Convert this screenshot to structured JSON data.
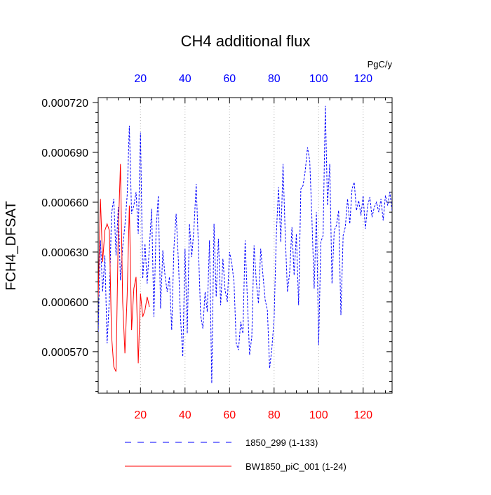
{
  "chart_data": {
    "type": "line",
    "title": "CH4 additional flux",
    "ylabel": "FCH4_DFSAT",
    "top_axis_units": "PgC/y",
    "xlim": [
      1,
      133
    ],
    "ylim": [
      0.000545,
      0.000723
    ],
    "x_ticks": [
      20,
      40,
      60,
      80,
      100,
      120
    ],
    "x_tick_labels": [
      "20",
      "40",
      "60",
      "80",
      "100",
      "120"
    ],
    "y_ticks": [
      0.00057,
      0.0006,
      0.00063,
      0.00066,
      0.00069,
      0.00072
    ],
    "y_tick_labels": [
      "0.000570",
      "0.000600",
      "0.000630",
      "0.000660",
      "0.000690",
      "0.000720"
    ],
    "grid": "vertical dotted at major x ticks",
    "legend_placement": "below",
    "series": [
      {
        "name": "1850_299 (1-133)",
        "color": "#0000ff",
        "style": "dashed",
        "x": [
          1,
          2,
          3,
          4,
          5,
          6,
          7,
          8,
          9,
          10,
          11,
          12,
          13,
          14,
          15,
          16,
          17,
          18,
          19,
          20,
          21,
          22,
          23,
          24,
          25,
          26,
          27,
          28,
          29,
          30,
          31,
          32,
          33,
          34,
          35,
          36,
          37,
          38,
          39,
          40,
          41,
          42,
          43,
          44,
          45,
          46,
          47,
          48,
          49,
          50,
          51,
          52,
          53,
          54,
          55,
          56,
          57,
          58,
          59,
          60,
          61,
          62,
          63,
          64,
          65,
          66,
          67,
          68,
          69,
          70,
          71,
          72,
          73,
          74,
          75,
          76,
          77,
          78,
          79,
          80,
          81,
          82,
          83,
          84,
          85,
          86,
          87,
          88,
          89,
          90,
          91,
          92,
          93,
          94,
          95,
          96,
          97,
          98,
          99,
          100,
          101,
          102,
          103,
          104,
          105,
          106,
          107,
          108,
          109,
          110,
          111,
          112,
          113,
          114,
          115,
          116,
          117,
          118,
          119,
          120,
          121,
          122,
          123,
          124,
          125,
          126,
          127,
          128,
          129,
          130,
          131,
          132,
          133
        ],
        "y": [
          0.000582,
          0.000637,
          0.000606,
          0.000628,
          0.000575,
          0.000602,
          0.000653,
          0.000662,
          0.000628,
          0.000657,
          0.000613,
          0.000633,
          0.000646,
          0.000664,
          0.000706,
          0.000653,
          0.000658,
          0.000666,
          0.000641,
          0.000702,
          0.000614,
          0.000635,
          0.000611,
          0.000633,
          0.000656,
          0.000591,
          0.000643,
          0.000664,
          0.000596,
          0.000631,
          0.000616,
          0.000606,
          0.000615,
          0.000583,
          0.000632,
          0.000653,
          0.000625,
          0.00059,
          0.000567,
          0.000632,
          0.000581,
          0.000647,
          0.000627,
          0.000644,
          0.000671,
          0.000634,
          0.000592,
          0.000584,
          0.000606,
          0.000594,
          0.000637,
          0.000551,
          0.000647,
          0.000603,
          0.000638,
          0.000598,
          0.000626,
          0.000607,
          0.0006,
          0.00063,
          0.000623,
          0.000612,
          0.000575,
          0.000571,
          0.000588,
          0.000581,
          0.000637,
          0.000601,
          0.000568,
          0.000579,
          0.000634,
          0.000612,
          0.000599,
          0.000632,
          0.000616,
          0.000601,
          0.000595,
          0.00056,
          0.000572,
          0.00059,
          0.00064,
          0.000669,
          0.000636,
          0.000683,
          0.000641,
          0.000606,
          0.000618,
          0.000645,
          0.000616,
          0.000641,
          0.000598,
          0.000668,
          0.00067,
          0.000679,
          0.000693,
          0.000685,
          0.00065,
          0.000608,
          0.000654,
          0.000574,
          0.000636,
          0.00064,
          0.000718,
          0.000658,
          0.000683,
          0.000611,
          0.000643,
          0.000646,
          0.000655,
          0.000592,
          0.00064,
          0.000645,
          0.000662,
          0.000647,
          0.000668,
          0.000672,
          0.000655,
          0.000661,
          0.000652,
          0.000664,
          0.000644,
          0.000658,
          0.000663,
          0.000651,
          0.000657,
          0.00066,
          0.000654,
          0.000662,
          0.000649,
          0.000664,
          0.000658,
          0.000666,
          0.000655
        ]
      },
      {
        "name": "BW1850_piC_001 (1-24)",
        "color": "#ff0000",
        "style": "solid",
        "x": [
          1,
          2,
          3,
          4,
          5,
          6,
          7,
          8,
          9,
          10,
          11,
          12,
          13,
          14,
          15,
          16,
          17,
          18,
          19,
          20,
          21,
          22,
          23,
          24
        ],
        "y": [
          0.000603,
          0.000662,
          0.000624,
          0.000643,
          0.000647,
          0.000643,
          0.00058,
          0.000561,
          0.000558,
          0.000641,
          0.000683,
          0.0006,
          0.000569,
          0.000604,
          0.000658,
          0.000583,
          0.000608,
          0.000615,
          0.000563,
          0.000605,
          0.000591,
          0.000595,
          0.000603,
          0.000597
        ]
      }
    ]
  }
}
